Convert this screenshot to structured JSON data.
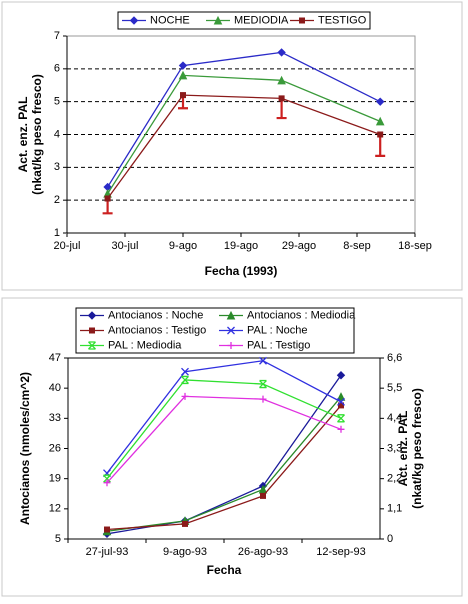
{
  "chart_data": [
    {
      "type": "line",
      "x": [
        208,
        221,
        238,
        255
      ],
      "xlim": [
        201,
        261
      ],
      "xticks": [
        {
          "value": 201,
          "label": "20-jul"
        },
        {
          "value": 211,
          "label": "30-jul"
        },
        {
          "value": 221,
          "label": "9-ago"
        },
        {
          "value": 231,
          "label": "19-ago"
        },
        {
          "value": 241,
          "label": "29-ago"
        },
        {
          "value": 251,
          "label": "8-sep"
        },
        {
          "value": 261,
          "label": "18-sep"
        }
      ],
      "ylim": [
        1,
        7
      ],
      "yticks": [
        1,
        2,
        3,
        4,
        5,
        6,
        7
      ],
      "grid": true,
      "legend": "top",
      "xlabel": "Fecha (1993)",
      "ylabel": [
        "Act. enz. PAL",
        "(nkat/kg peso fresco)"
      ],
      "series": [
        {
          "name": "NOCHE",
          "color": "#2b2bc8",
          "marker": "diamond",
          "values": [
            2.4,
            6.1,
            6.5,
            5.0
          ]
        },
        {
          "name": "MEDIODIA",
          "color": "#3a9a3a",
          "marker": "triangle",
          "values": [
            2.2,
            5.8,
            5.65,
            4.4
          ]
        },
        {
          "name": "TESTIGO",
          "color": "#8b1a1a",
          "marker": "square",
          "values": [
            2.05,
            5.2,
            5.1,
            4.0
          ],
          "errors": [
            0.45,
            0.4,
            0.6,
            0.65
          ],
          "error_color": "#cc2020"
        }
      ]
    },
    {
      "type": "line",
      "categories": [
        "27-jul-93",
        "9-ago-93",
        "26-ago-93",
        "12-sep-93"
      ],
      "ylim": [
        5,
        47
      ],
      "yticks": [
        5,
        12,
        19,
        26,
        33,
        40,
        47
      ],
      "y2lim": [
        0,
        6.6
      ],
      "y2ticks": [
        0,
        {
          "value": 1.1,
          "label": "1,1"
        },
        {
          "value": 2.2,
          "label": "2,2"
        },
        {
          "value": 3.3,
          "label": "3,3"
        },
        {
          "value": 4.4,
          "label": "4,4"
        },
        {
          "value": 5.5,
          "label": "5,5"
        },
        {
          "value": 6.6,
          "label": "6,6"
        }
      ],
      "grid": false,
      "legend": "top",
      "xlabel": "Fecha",
      "ylabel": [
        "Antocianos (nmoles/cm^2)"
      ],
      "y2label": [
        "Act. enz. PAL",
        "(nkat/kg peso fresco)"
      ],
      "series": [
        {
          "name": "Antocianos : Noche",
          "color": "#1a1a9a",
          "marker": "diamond",
          "values": [
            6.2,
            9.2,
            17.3,
            43
          ]
        },
        {
          "name": "Antocianos : Mediodia",
          "color": "#2a8a2a",
          "marker": "triangle",
          "values": [
            6.8,
            9.2,
            16.5,
            38
          ]
        },
        {
          "name": "Antocianos : Testigo",
          "color": "#8b1a1a",
          "marker": "square",
          "values": [
            7.2,
            8.5,
            15,
            36
          ]
        },
        {
          "name": "PAL : Noche",
          "color": "#3030e0",
          "marker": "x",
          "axis": "y2",
          "values": [
            2.4,
            6.1,
            6.5,
            5.0
          ]
        },
        {
          "name": "PAL : Mediodia",
          "color": "#30e030",
          "marker": "star",
          "axis": "y2",
          "values": [
            2.2,
            5.8,
            5.65,
            4.4
          ]
        },
        {
          "name": "PAL : Testigo",
          "color": "#e030e0",
          "marker": "plus",
          "axis": "y2",
          "values": [
            2.05,
            5.2,
            5.1,
            4.0
          ]
        }
      ]
    }
  ]
}
